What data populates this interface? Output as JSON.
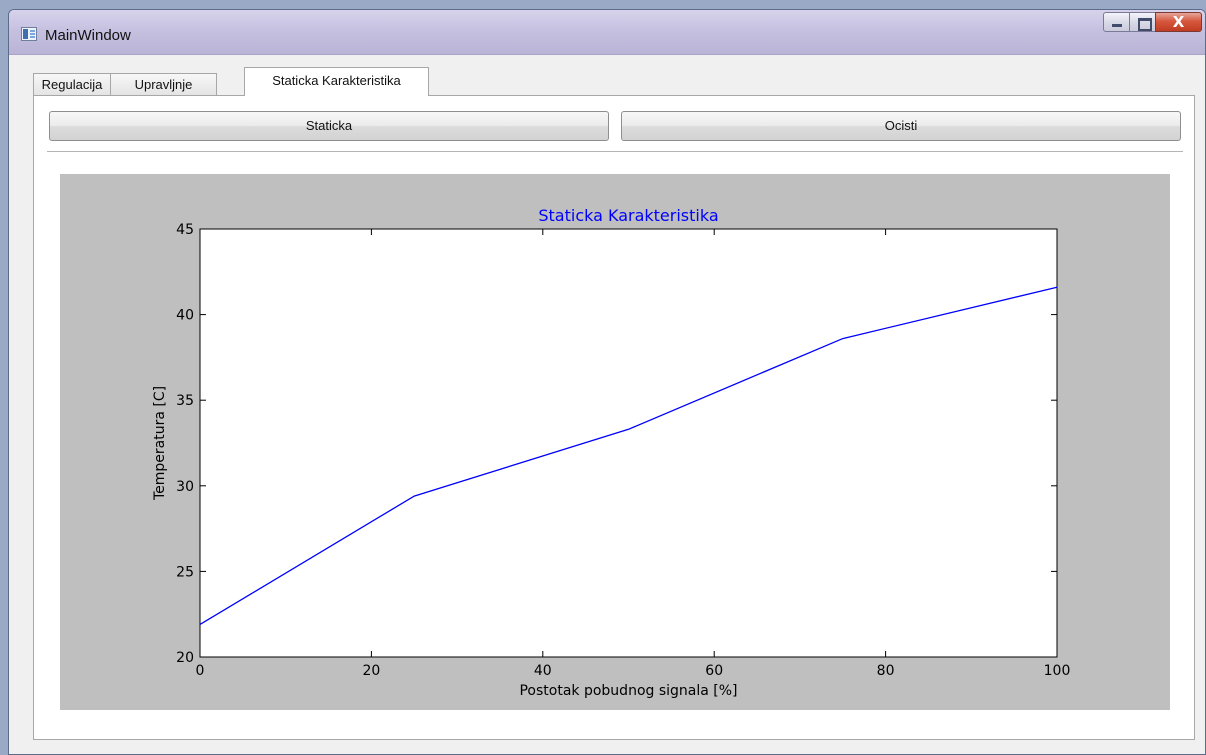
{
  "window": {
    "title": "MainWindow",
    "close_glyph": "X"
  },
  "tabs": [
    {
      "label": "Regulacija",
      "active": false
    },
    {
      "label": "Upravljnje",
      "active": false
    },
    {
      "label": "Staticka Karakteristika",
      "active": true
    }
  ],
  "toolbar": {
    "staticka_label": "Staticka",
    "ocisti_label": "Ocisti"
  },
  "colors": {
    "line": "#0000ff",
    "title": "#0000ff",
    "figure_bg": "#bfbfbf"
  },
  "chart_data": {
    "type": "line",
    "title": "Staticka Karakteristika",
    "xlabel": "Postotak pobudnog signala [%]",
    "ylabel": "Temperatura [C]",
    "xlim": [
      0,
      100
    ],
    "ylim": [
      20,
      45
    ],
    "xticks": [
      0,
      20,
      40,
      60,
      80,
      100
    ],
    "yticks": [
      20,
      25,
      30,
      35,
      40,
      45
    ],
    "grid": false,
    "series": [
      {
        "x": [
          0,
          25,
          50,
          75,
          100
        ],
        "y": [
          21.9,
          29.4,
          33.3,
          38.6,
          41.6
        ]
      }
    ]
  }
}
